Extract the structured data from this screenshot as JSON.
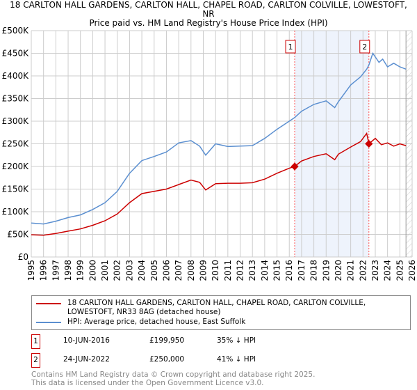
{
  "chart_data": {
    "type": "line",
    "title": "18 CARLTON HALL GARDENS, CARLTON HALL, CHAPEL ROAD, CARLTON COLVILLE, LOWESTOFT, NR",
    "subtitle": "Price paid vs. HM Land Registry's House Price Index (HPI)",
    "xlim": [
      1995,
      2026
    ],
    "ylim": [
      0,
      500000
    ],
    "x_ticks": [
      "1995",
      "1996",
      "1997",
      "1998",
      "1999",
      "2000",
      "2001",
      "2002",
      "2003",
      "2004",
      "2005",
      "2006",
      "2007",
      "2008",
      "2009",
      "2010",
      "2011",
      "2012",
      "2013",
      "2014",
      "2015",
      "2016",
      "2017",
      "2018",
      "2019",
      "2020",
      "2021",
      "2022",
      "2023",
      "2024",
      "2025",
      "2026"
    ],
    "y_ticks": [
      {
        "v": 0,
        "label": "£0"
      },
      {
        "v": 50000,
        "label": "£50K"
      },
      {
        "v": 100000,
        "label": "£100K"
      },
      {
        "v": 150000,
        "label": "£150K"
      },
      {
        "v": 200000,
        "label": "£200K"
      },
      {
        "v": 250000,
        "label": "£250K"
      },
      {
        "v": 300000,
        "label": "£300K"
      },
      {
        "v": 350000,
        "label": "£350K"
      },
      {
        "v": 400000,
        "label": "£400K"
      },
      {
        "v": 450000,
        "label": "£450K"
      },
      {
        "v": 500000,
        "label": "£500K"
      }
    ],
    "grid": true,
    "series": [
      {
        "name": "18 CARLTON HALL GARDENS, CARLTON HALL, CHAPEL ROAD, CARLTON COLVILLE, LOWESTOFT, NR33 8AG (detached house)",
        "color": "#cc0000",
        "x": [
          1995,
          1996,
          1997,
          1998,
          1999,
          2000,
          2001,
          2002,
          2003,
          2004,
          2005,
          2006,
          2007,
          2008,
          2008.7,
          2009.2,
          2010,
          2011,
          2012,
          2013,
          2014,
          2015,
          2016,
          2016.44,
          2017,
          2018,
          2019,
          2019.7,
          2020,
          2021,
          2021.8,
          2022.3,
          2022.48,
          2023,
          2023.5,
          2024,
          2024.5,
          2025,
          2025.5
        ],
        "y": [
          49000,
          48000,
          52000,
          57000,
          62000,
          70000,
          80000,
          95000,
          120000,
          140000,
          145000,
          150000,
          160000,
          170000,
          165000,
          148000,
          162000,
          163000,
          163000,
          164000,
          172000,
          185000,
          196000,
          199950,
          212000,
          222000,
          228000,
          215000,
          227000,
          243000,
          255000,
          273000,
          250000,
          262000,
          248000,
          252000,
          245000,
          250000,
          246000
        ]
      },
      {
        "name": "HPI: Average price, detached house, East Suffolk",
        "color": "#5b8fd0",
        "x": [
          1995,
          1996,
          1997,
          1998,
          1999,
          2000,
          2001,
          2002,
          2003,
          2004,
          2005,
          2006,
          2007,
          2008,
          2008.7,
          2009.2,
          2010,
          2011,
          2012,
          2013,
          2014,
          2015,
          2016,
          2016.44,
          2017,
          2018,
          2019,
          2019.7,
          2020,
          2021,
          2021.8,
          2022.3,
          2022.48,
          2022.8,
          2023.3,
          2023.6,
          2024,
          2024.5,
          2025,
          2025.5
        ],
        "y": [
          75000,
          73000,
          79000,
          87000,
          93000,
          105000,
          120000,
          145000,
          185000,
          213000,
          222000,
          232000,
          252000,
          257000,
          245000,
          225000,
          250000,
          244000,
          245000,
          246000,
          262000,
          282000,
          300000,
          308000,
          322000,
          337000,
          345000,
          330000,
          343000,
          380000,
          398000,
          415000,
          424000,
          450000,
          430000,
          437000,
          420000,
          428000,
          420000,
          415000
        ]
      }
    ],
    "sales": [
      {
        "n": "1",
        "x": 2016.44,
        "y": 199950
      },
      {
        "n": "2",
        "x": 2022.48,
        "y": 250000
      }
    ],
    "forecast_hatch_from": 2025.5
  },
  "legend": {
    "red_label": "18 CARLTON HALL GARDENS, CARLTON HALL, CHAPEL ROAD, CARLTON COLVILLE, LOWESTOFT, NR33 8AG (detached house)",
    "blue_label": "HPI: Average price, detached house, East Suffolk"
  },
  "transactions": [
    {
      "n": "1",
      "date": "10-JUN-2016",
      "price": "£199,950",
      "hpi": "35% ↓ HPI"
    },
    {
      "n": "2",
      "date": "24-JUN-2022",
      "price": "£250,000",
      "hpi": "41% ↓ HPI"
    }
  ],
  "footer": {
    "line1": "Contains HM Land Registry data © Crown copyright and database right 2025.",
    "line2": "This data is licensed under the Open Government Licence v3.0."
  }
}
